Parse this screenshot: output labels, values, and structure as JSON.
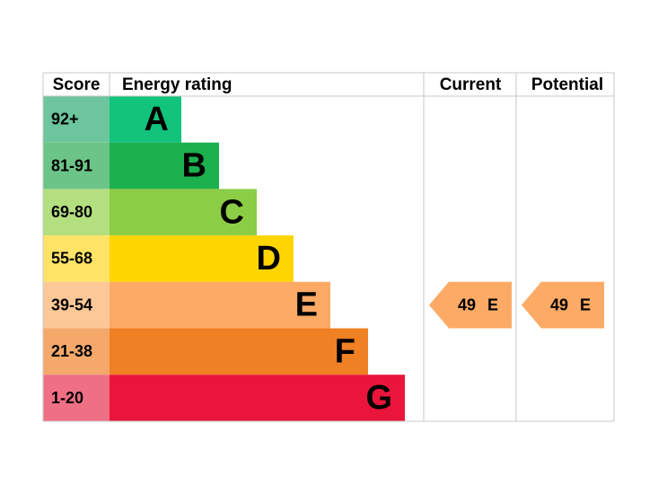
{
  "header": {
    "score": "Score",
    "rating": "Energy rating",
    "current": "Current",
    "potential": "Potential"
  },
  "bands": [
    {
      "score": "92+",
      "letter": "A",
      "color": "#12c37c",
      "score_color": "#6cc59c"
    },
    {
      "score": "81-91",
      "letter": "B",
      "color": "#1cb04f",
      "score_color": "#6dc488"
    },
    {
      "score": "69-80",
      "letter": "C",
      "color": "#8ccd46",
      "score_color": "#b4df80"
    },
    {
      "score": "55-68",
      "letter": "D",
      "color": "#ffd500",
      "score_color": "#ffe366"
    },
    {
      "score": "39-54",
      "letter": "E",
      "color": "#fcaa65",
      "score_color": "#fdc898"
    },
    {
      "score": "21-38",
      "letter": "F",
      "color": "#ef8023",
      "score_color": "#f4a96b"
    },
    {
      "score": "1-20",
      "letter": "G",
      "color": "#e9153b",
      "score_color": "#ef6f84"
    }
  ],
  "current": {
    "value": 49,
    "band": "E"
  },
  "potential": {
    "value": 49,
    "band": "E"
  }
}
